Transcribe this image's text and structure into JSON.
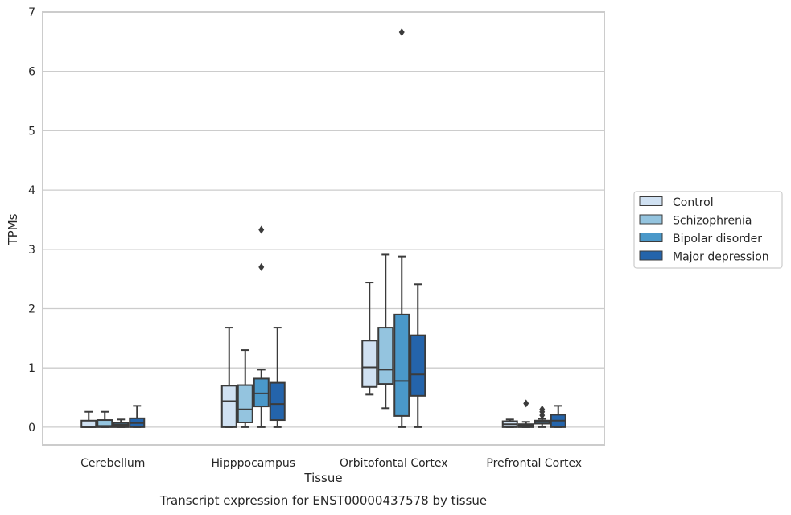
{
  "caption": "Transcript expression for ENST00000437578 by tissue",
  "chart_data": {
    "type": "box",
    "xlabel": "Tissue",
    "ylabel": "TPMs",
    "ylim": [
      -0.3,
      7
    ],
    "yticks": [
      0,
      1,
      2,
      3,
      4,
      5,
      6,
      7
    ],
    "grid": "horizontal",
    "legend_position": "right",
    "categories": [
      "Cerebellum",
      "Hipppocampus",
      "Orbitofontal Cortex",
      "Prefrontal Cortex"
    ],
    "series": [
      {
        "name": "Control",
        "color": "#d0e1f2",
        "boxes": [
          {
            "whisker_low": 0,
            "q1": 0,
            "median": 0,
            "q3": 0.11,
            "whisker_high": 0.26,
            "outliers": []
          },
          {
            "whisker_low": 0,
            "q1": 0,
            "median": 0.44,
            "q3": 0.7,
            "whisker_high": 1.68,
            "outliers": []
          },
          {
            "whisker_low": 0.55,
            "q1": 0.68,
            "median": 1.01,
            "q3": 1.46,
            "whisker_high": 2.44,
            "outliers": []
          },
          {
            "whisker_low": 0,
            "q1": 0,
            "median": 0.05,
            "q3": 0.1,
            "whisker_high": 0.13,
            "outliers": []
          }
        ]
      },
      {
        "name": "Schizophrenia",
        "color": "#94c4df",
        "boxes": [
          {
            "whisker_low": 0,
            "q1": 0,
            "median": 0.02,
            "q3": 0.12,
            "whisker_high": 0.26,
            "outliers": []
          },
          {
            "whisker_low": 0,
            "q1": 0.08,
            "median": 0.3,
            "q3": 0.71,
            "whisker_high": 1.3,
            "outliers": []
          },
          {
            "whisker_low": 0.32,
            "q1": 0.73,
            "median": 0.97,
            "q3": 1.68,
            "whisker_high": 2.91,
            "outliers": []
          },
          {
            "whisker_low": 0,
            "q1": 0,
            "median": 0.03,
            "q3": 0.05,
            "whisker_high": 0.09,
            "outliers": [
              0.4
            ]
          }
        ]
      },
      {
        "name": "Bipolar disorder",
        "color": "#4a98c9",
        "boxes": [
          {
            "whisker_low": 0,
            "q1": 0,
            "median": 0.04,
            "q3": 0.07,
            "whisker_high": 0.13,
            "outliers": []
          },
          {
            "whisker_low": 0,
            "q1": 0.35,
            "median": 0.57,
            "q3": 0.82,
            "whisker_high": 0.97,
            "outliers": [
              3.33,
              2.7
            ]
          },
          {
            "whisker_low": 0,
            "q1": 0.19,
            "median": 0.78,
            "q3": 1.9,
            "whisker_high": 2.88,
            "outliers": [
              6.66
            ]
          },
          {
            "whisker_low": 0,
            "q1": 0.06,
            "median": 0.09,
            "q3": 0.11,
            "whisker_high": 0.14,
            "outliers": [
              0.2,
              0.26,
              0.3
            ]
          }
        ]
      },
      {
        "name": "Major depression",
        "color": "#2464ab",
        "boxes": [
          {
            "whisker_low": 0,
            "q1": 0,
            "median": 0.07,
            "q3": 0.15,
            "whisker_high": 0.36,
            "outliers": []
          },
          {
            "whisker_low": 0,
            "q1": 0.12,
            "median": 0.39,
            "q3": 0.75,
            "whisker_high": 1.68,
            "outliers": []
          },
          {
            "whisker_low": 0,
            "q1": 0.53,
            "median": 0.89,
            "q3": 1.55,
            "whisker_high": 2.41,
            "outliers": []
          },
          {
            "whisker_low": 0,
            "q1": 0,
            "median": 0.11,
            "q3": 0.21,
            "whisker_high": 0.36,
            "outliers": []
          }
        ]
      }
    ]
  }
}
